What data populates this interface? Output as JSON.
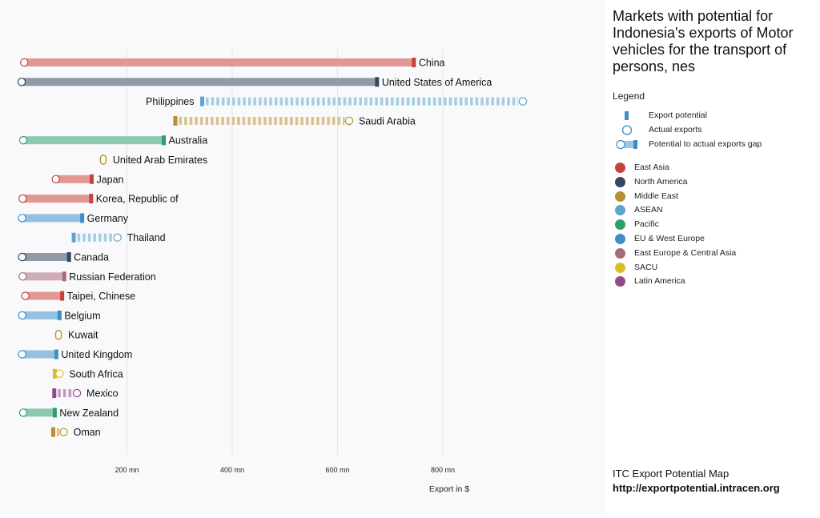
{
  "title": "Markets with potential for Indonesia's exports of Motor vehicles for the transport of persons, nes",
  "legend": {
    "heading": "Legend",
    "items": [
      {
        "key": "potential",
        "label": "Export potential"
      },
      {
        "key": "actual",
        "label": "Actual exports"
      },
      {
        "key": "gap",
        "label": "Potential to actual exports gap"
      }
    ]
  },
  "regions": [
    {
      "name": "East Asia",
      "color": "#c8413a"
    },
    {
      "name": "North America",
      "color": "#34495e"
    },
    {
      "name": "Middle East",
      "color": "#b8902f"
    },
    {
      "name": "ASEAN",
      "color": "#5aa6cc"
    },
    {
      "name": "Pacific",
      "color": "#2e9d6e"
    },
    {
      "name": "EU & West Europe",
      "color": "#3f8ec8"
    },
    {
      "name": "East Europe & Central Asia",
      "color": "#a86a7a"
    },
    {
      "name": "SACU",
      "color": "#d8bf2a"
    },
    {
      "name": "Latin America",
      "color": "#93488c"
    }
  ],
  "footer": {
    "line1": "ITC Export Potential Map",
    "line2": "http://exportpotential.intracen.org"
  },
  "chart_data": {
    "type": "dumbbell",
    "xlabel": "Export in $",
    "x_ticks": [
      {
        "value": 200,
        "label": "200 mn"
      },
      {
        "value": 400,
        "label": "400 mn"
      },
      {
        "value": 600,
        "label": "600 mn"
      },
      {
        "value": 800,
        "label": "800 mn"
      }
    ],
    "x_unit": "mn USD",
    "xlim": [
      0,
      960
    ],
    "grid": true,
    "markets": [
      {
        "name": "China",
        "region": "East Asia",
        "potential": 745,
        "actual": 5
      },
      {
        "name": "United States of America",
        "region": "North America",
        "potential": 675,
        "actual": 0
      },
      {
        "name": "Philippines",
        "region": "ASEAN",
        "potential": 343,
        "actual": 952
      },
      {
        "name": "Saudi Arabia",
        "region": "Middle East",
        "potential": 292,
        "actual": 622
      },
      {
        "name": "Australia",
        "region": "Pacific",
        "potential": 270,
        "actual": 3
      },
      {
        "name": "United Arab Emirates",
        "region": "Middle East",
        "potential": 155,
        "actual": 155
      },
      {
        "name": "Japan",
        "region": "East Asia",
        "potential": 133,
        "actual": 65
      },
      {
        "name": "Korea, Republic of",
        "region": "East Asia",
        "potential": 132,
        "actual": 2
      },
      {
        "name": "Germany",
        "region": "EU & West Europe",
        "potential": 115,
        "actual": 1
      },
      {
        "name": "Thailand",
        "region": "ASEAN",
        "potential": 99,
        "actual": 182
      },
      {
        "name": "Canada",
        "region": "North America",
        "potential": 90,
        "actual": 1
      },
      {
        "name": "Russian Federation",
        "region": "East Europe & Central Asia",
        "potential": 81,
        "actual": 2
      },
      {
        "name": "Taipei, Chinese",
        "region": "East Asia",
        "potential": 77,
        "actual": 7
      },
      {
        "name": "Belgium",
        "region": "EU & West Europe",
        "potential": 72,
        "actual": 1
      },
      {
        "name": "Kuwait",
        "region": "Middle East",
        "potential": 70,
        "actual": 70
      },
      {
        "name": "United Kingdom",
        "region": "EU & West Europe",
        "potential": 66,
        "actual": 1
      },
      {
        "name": "South Africa",
        "region": "SACU",
        "potential": 63,
        "actual": 72
      },
      {
        "name": "Mexico",
        "region": "Latin America",
        "potential": 62,
        "actual": 105
      },
      {
        "name": "New Zealand",
        "region": "Pacific",
        "potential": 63,
        "actual": 3
      },
      {
        "name": "Oman",
        "region": "Middle East",
        "potential": 60,
        "actual": 80
      }
    ]
  }
}
